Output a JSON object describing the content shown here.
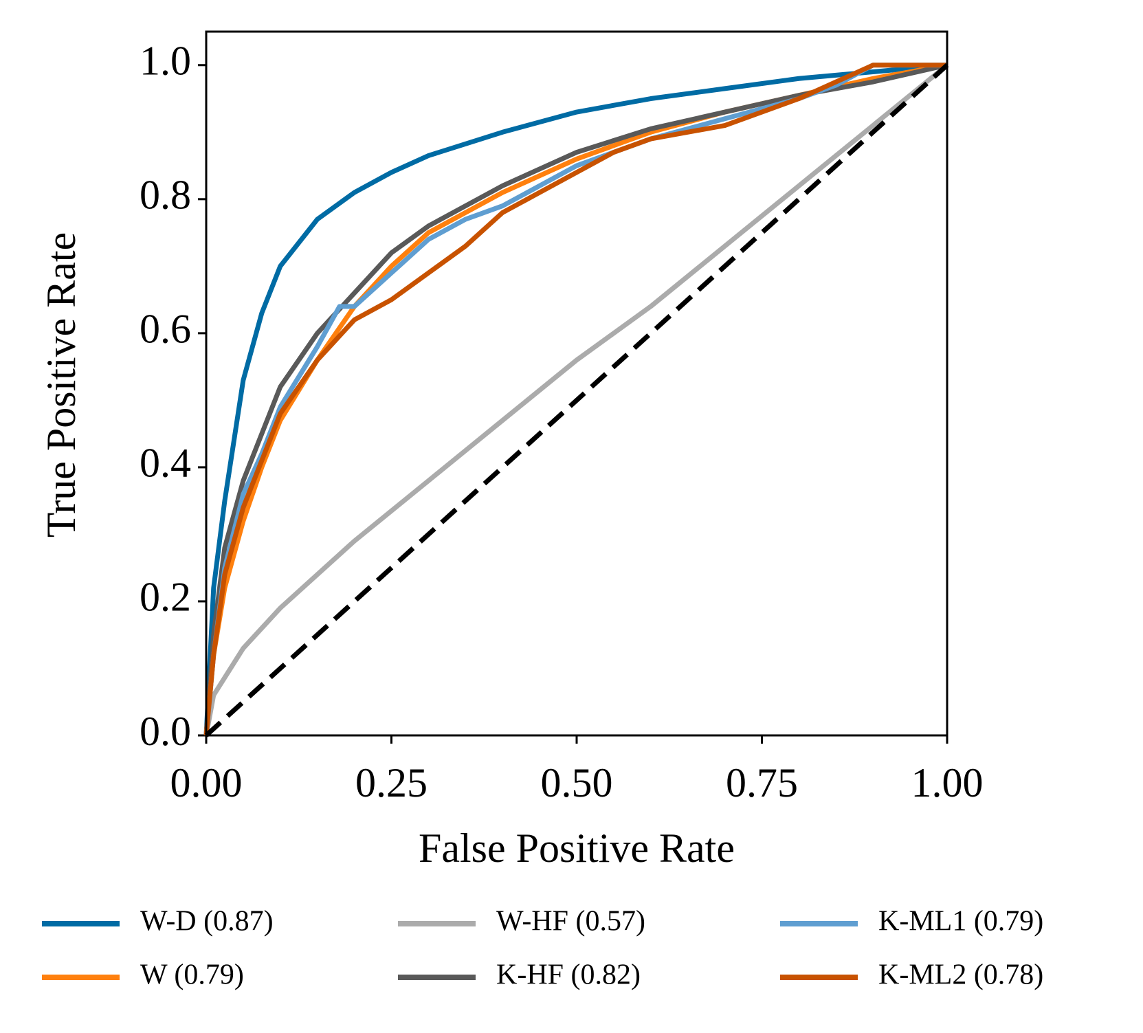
{
  "chart_data": {
    "type": "line",
    "xlabel": "False Positive Rate",
    "ylabel": "True Positive Rate",
    "xlim": [
      0,
      1
    ],
    "ylim": [
      0,
      1.05
    ],
    "xticks": [
      {
        "value": 0,
        "label": "0.00"
      },
      0.25,
      {
        "value": 0.5,
        "label": "0.50"
      },
      0.75,
      {
        "value": 1,
        "label": "1.00"
      }
    ],
    "yticks": [
      {
        "value": 0,
        "label": "0.0"
      },
      0.2,
      0.4,
      0.6,
      0.8,
      {
        "value": 1,
        "label": "1.0"
      }
    ],
    "grid": false,
    "diagonal": {
      "x": [
        0,
        1
      ],
      "y": [
        0,
        1
      ],
      "color": "#000000",
      "dashed": true
    },
    "series": [
      {
        "name": "W-D (0.87)",
        "color": "#006ba4",
        "x": [
          0,
          0.01,
          0.025,
          0.05,
          0.075,
          0.1,
          0.15,
          0.2,
          0.25,
          0.3,
          0.4,
          0.5,
          0.6,
          0.7,
          0.8,
          0.9,
          1
        ],
        "y": [
          0,
          0.22,
          0.35,
          0.53,
          0.63,
          0.7,
          0.77,
          0.81,
          0.84,
          0.865,
          0.9,
          0.93,
          0.95,
          0.965,
          0.98,
          0.99,
          1
        ]
      },
      {
        "name": "W (0.79)",
        "color": "#ff800e",
        "x": [
          0,
          0.01,
          0.025,
          0.05,
          0.075,
          0.1,
          0.15,
          0.2,
          0.25,
          0.3,
          0.4,
          0.5,
          0.6,
          0.7,
          0.8,
          0.9,
          1
        ],
        "y": [
          0,
          0.12,
          0.22,
          0.32,
          0.4,
          0.47,
          0.56,
          0.64,
          0.7,
          0.75,
          0.81,
          0.86,
          0.9,
          0.93,
          0.955,
          0.98,
          1
        ]
      },
      {
        "name": "W-HF (0.57)",
        "color": "#ababab",
        "x": [
          0,
          0.01,
          0.05,
          0.1,
          0.2,
          0.3,
          0.4,
          0.5,
          0.6,
          0.7,
          0.8,
          0.9,
          1
        ],
        "y": [
          0,
          0.06,
          0.13,
          0.19,
          0.29,
          0.38,
          0.47,
          0.56,
          0.64,
          0.73,
          0.82,
          0.91,
          1
        ]
      },
      {
        "name": "K-HF (0.82)",
        "color": "#595959",
        "x": [
          0,
          0.01,
          0.025,
          0.05,
          0.075,
          0.1,
          0.15,
          0.2,
          0.25,
          0.3,
          0.4,
          0.5,
          0.6,
          0.7,
          0.8,
          0.9,
          1
        ],
        "y": [
          0,
          0.15,
          0.28,
          0.38,
          0.45,
          0.52,
          0.6,
          0.66,
          0.72,
          0.76,
          0.82,
          0.87,
          0.905,
          0.93,
          0.955,
          0.975,
          1
        ]
      },
      {
        "name": "K-ML1 (0.79)",
        "color": "#5f9ed1",
        "x": [
          0,
          0.01,
          0.025,
          0.05,
          0.075,
          0.1,
          0.15,
          0.18,
          0.2,
          0.25,
          0.3,
          0.35,
          0.4,
          0.45,
          0.5,
          0.6,
          0.7,
          0.8,
          0.85,
          0.9,
          1
        ],
        "y": [
          0,
          0.12,
          0.25,
          0.36,
          0.42,
          0.49,
          0.58,
          0.64,
          0.64,
          0.69,
          0.74,
          0.77,
          0.79,
          0.82,
          0.85,
          0.89,
          0.92,
          0.95,
          0.97,
          1,
          1
        ]
      },
      {
        "name": "K-ML2 (0.78)",
        "color": "#c85200",
        "x": [
          0,
          0.01,
          0.025,
          0.05,
          0.075,
          0.1,
          0.15,
          0.2,
          0.25,
          0.3,
          0.35,
          0.4,
          0.45,
          0.5,
          0.55,
          0.6,
          0.7,
          0.8,
          0.9,
          1
        ],
        "y": [
          0,
          0.12,
          0.24,
          0.34,
          0.41,
          0.48,
          0.56,
          0.62,
          0.65,
          0.69,
          0.73,
          0.78,
          0.81,
          0.84,
          0.87,
          0.89,
          0.91,
          0.95,
          1,
          1
        ]
      }
    ]
  }
}
